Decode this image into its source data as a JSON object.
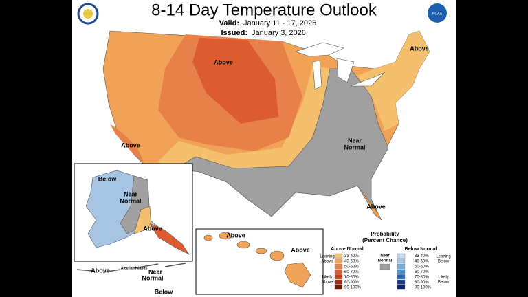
{
  "header": {
    "title": "8-14 Day Temperature Outlook",
    "valid_label": "Valid:",
    "valid": "January 11 - 17, 2026",
    "issued_label": "Issued:",
    "issued": "January 3, 2026",
    "noaa_logo": "NOAA"
  },
  "map_labels": {
    "northern_plains": "Above",
    "california": "Above",
    "northeast": "Above",
    "southeast": [
      "Near",
      "Normal"
    ],
    "florida": "Above",
    "alaska_north": "Below",
    "alaska_middle": [
      "Near",
      "Normal"
    ],
    "alaska_south": "Above",
    "aleutian_west": "Above",
    "aleutian_islands": "Aleutian Islands",
    "aleutian_east": [
      "Near",
      "Normal"
    ],
    "aleutian_south": "Below",
    "hawaii_west": "Above",
    "hawaii_east": "Above"
  },
  "legend": {
    "title": [
      "Probability",
      "(Percent Chance)"
    ],
    "above_heading": "Above Normal",
    "below_heading": "Below Normal",
    "near": [
      "Near",
      "Normal"
    ],
    "near_color": "#a0a0a0",
    "leaning_above": [
      "Leaning",
      "Above"
    ],
    "likely_above": [
      "Likely",
      "Above"
    ],
    "leaning_below": [
      "Leaning",
      "Below"
    ],
    "likely_below": [
      "Likely",
      "Below"
    ],
    "above": [
      {
        "label": "33-40%",
        "color": "#f5c06e"
      },
      {
        "label": "40-50%",
        "color": "#f0a257"
      },
      {
        "label": "50-60%",
        "color": "#e8804a"
      },
      {
        "label": "60-70%",
        "color": "#dc5c30"
      },
      {
        "label": "70-80%",
        "color": "#c8421e"
      },
      {
        "label": "80-90%",
        "color": "#a02a12"
      },
      {
        "label": "90-100%",
        "color": "#701808"
      }
    ],
    "below": [
      {
        "label": "33-40%",
        "color": "#c4d6ec"
      },
      {
        "label": "40-50%",
        "color": "#a7c5e3"
      },
      {
        "label": "50-60%",
        "color": "#7fb0dc"
      },
      {
        "label": "60-70%",
        "color": "#4f8fcc"
      },
      {
        "label": "70-80%",
        "color": "#2a64b0"
      },
      {
        "label": "80-90%",
        "color": "#183f88"
      },
      {
        "label": "90-100%",
        "color": "#0c2460"
      }
    ]
  }
}
